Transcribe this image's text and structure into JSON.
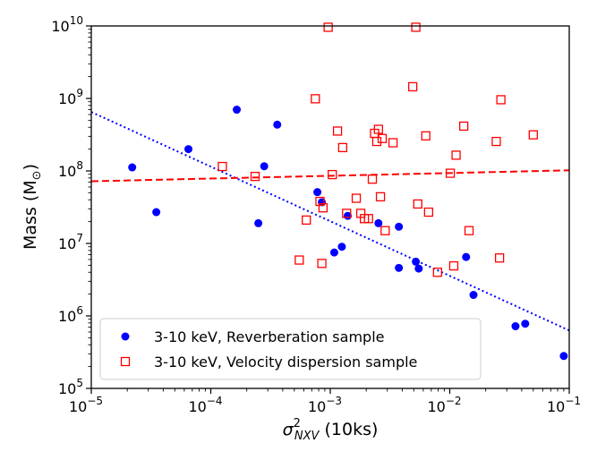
{
  "chart_data": {
    "type": "scatter",
    "xscale": "log",
    "yscale": "log",
    "xlim": [
      1e-05,
      0.1
    ],
    "ylim": [
      100000.0,
      10000000000.0
    ],
    "xlabel": "σ²NXV (10ks)",
    "xlabel_symbol": "σ",
    "xlabel_sup": "2",
    "xlabel_sub": "NXV",
    "xlabel_rest": " (10ks)",
    "ylabel": "Mass (M☉)",
    "ylabel_main": "Mass (M",
    "ylabel_sub": "⊙",
    "ylabel_close": ")",
    "x_ticks": [
      {
        "value": 1e-05,
        "base": "10",
        "exp": "−5"
      },
      {
        "value": 0.0001,
        "base": "10",
        "exp": "−4"
      },
      {
        "value": 0.001,
        "base": "10",
        "exp": "−3"
      },
      {
        "value": 0.01,
        "base": "10",
        "exp": "−2"
      },
      {
        "value": 0.1,
        "base": "10",
        "exp": "−1"
      }
    ],
    "y_ticks": [
      {
        "value": 100000.0,
        "base": "10",
        "exp": "5"
      },
      {
        "value": 1000000.0,
        "base": "10",
        "exp": "6"
      },
      {
        "value": 10000000.0,
        "base": "10",
        "exp": "7"
      },
      {
        "value": 100000000.0,
        "base": "10",
        "exp": "8"
      },
      {
        "value": 1000000000.0,
        "base": "10",
        "exp": "9"
      },
      {
        "value": 10000000000.0,
        "base": "10",
        "exp": "10"
      }
    ],
    "legend_position": "lower-left",
    "colors": {
      "reverberation": "#0000ff",
      "velocity": "#ff0000"
    },
    "series": [
      {
        "name": "3-10 keV, Reverberation sample",
        "marker": "filled-circle",
        "color": "#0000ff",
        "points": [
          [
            2.2e-05,
            112000000.0
          ],
          [
            3.5e-05,
            27000000.0
          ],
          [
            6.5e-05,
            200000000.0
          ],
          [
            0.000165,
            700000000.0
          ],
          [
            0.00025,
            19000000.0
          ],
          [
            0.00028,
            116000000.0
          ],
          [
            0.00036,
            435000000.0
          ],
          [
            0.00078,
            51000000.0
          ],
          [
            0.00085,
            37000000.0
          ],
          [
            0.00108,
            7500000.0
          ],
          [
            0.00125,
            9000000.0
          ],
          [
            0.0014,
            24000000.0
          ],
          [
            0.00253,
            19000000.0
          ],
          [
            0.00375,
            4600000.0
          ],
          [
            0.00375,
            17000000.0
          ],
          [
            0.0052,
            5600000.0
          ],
          [
            0.0055,
            4500000.0
          ],
          [
            0.0137,
            6500000.0
          ],
          [
            0.0158,
            1950000.0
          ],
          [
            0.0355,
            720000.0
          ],
          [
            0.0428,
            780000.0
          ],
          [
            0.09,
            280000.0
          ]
        ]
      },
      {
        "name": "3-10 keV, Velocity dispersion sample",
        "marker": "open-square",
        "color": "#ff0000",
        "points": [
          [
            0.000125,
            115000000.0
          ],
          [
            0.000235,
            84000000.0
          ],
          [
            0.00055,
            5900000.0
          ],
          [
            0.00063,
            21000000.0
          ],
          [
            0.00075,
            990000000.0
          ],
          [
            0.00082,
            38000000.0
          ],
          [
            0.00085,
            5300000.0
          ],
          [
            0.00087,
            31000000.0
          ],
          [
            0.00096,
            9600000000.0
          ],
          [
            0.00104,
            89000000.0
          ],
          [
            0.00115,
            355000000.0
          ],
          [
            0.00127,
            210000000.0
          ],
          [
            0.00137,
            26000000.0
          ],
          [
            0.00165,
            42000000.0
          ],
          [
            0.0018,
            26000000.0
          ],
          [
            0.00193,
            22000000.0
          ],
          [
            0.00209,
            22000000.0
          ],
          [
            0.00225,
            77000000.0
          ],
          [
            0.00235,
            330000000.0
          ],
          [
            0.00245,
            255000000.0
          ],
          [
            0.00253,
            375000000.0
          ],
          [
            0.00263,
            44000000.0
          ],
          [
            0.00272,
            280000000.0
          ],
          [
            0.00288,
            15000000.0
          ],
          [
            0.00335,
            245000000.0
          ],
          [
            0.0049,
            1450000000.0
          ],
          [
            0.0052,
            9600000000.0
          ],
          [
            0.0054,
            35000000.0
          ],
          [
            0.0063,
            305000000.0
          ],
          [
            0.00665,
            27000000.0
          ],
          [
            0.0079,
            4000000.0
          ],
          [
            0.0101,
            93000000.0
          ],
          [
            0.0108,
            4900000.0
          ],
          [
            0.0113,
            165000000.0
          ],
          [
            0.0131,
            415000000.0
          ],
          [
            0.0145,
            15000000.0
          ],
          [
            0.0245,
            255000000.0
          ],
          [
            0.0261,
            6300000.0
          ],
          [
            0.0268,
            960000000.0
          ],
          [
            0.05,
            315000000.0
          ]
        ]
      }
    ],
    "fit_lines": [
      {
        "name": "reverberation-fit",
        "style": "dotted",
        "color": "#0000ff",
        "x": [
          1e-05,
          0.1
        ],
        "y": [
          650000000.0,
          630000.0
        ]
      },
      {
        "name": "velocity-dispersion-fit",
        "style": "dashed",
        "color": "#ff0000",
        "x": [
          1e-05,
          0.1
        ],
        "y": [
          72000000.0,
          102000000.0
        ]
      }
    ]
  }
}
